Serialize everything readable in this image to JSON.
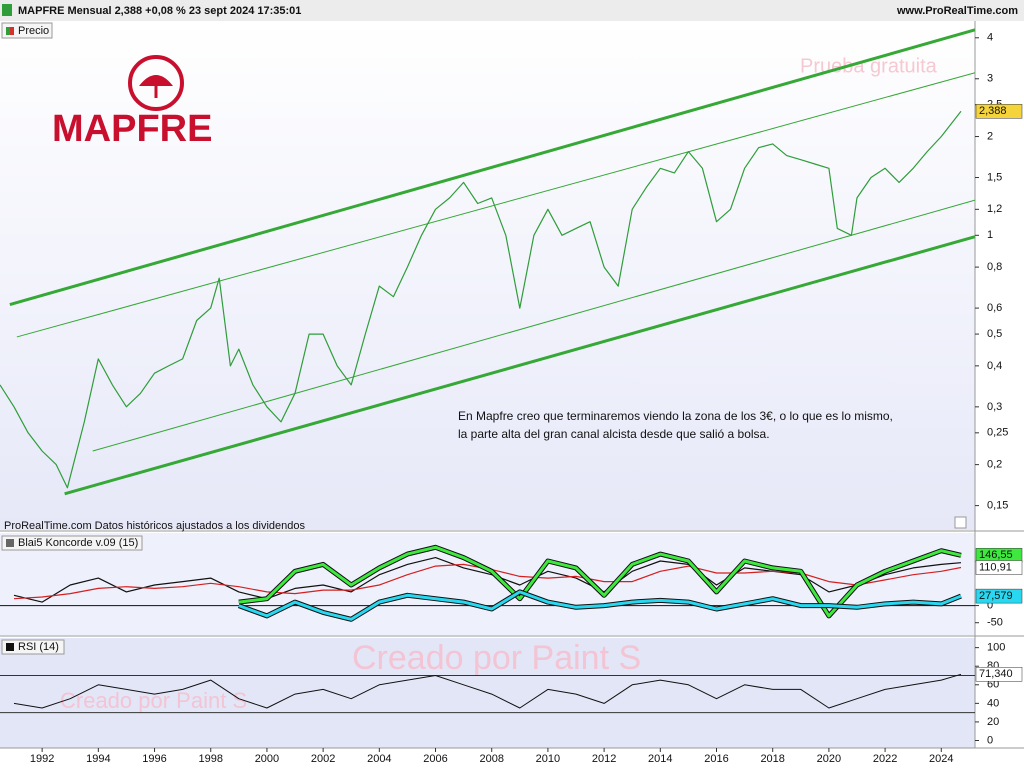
{
  "chart_data": [
    {
      "type": "line",
      "title": "MAPFRE Mensual 2,388 +0,08 % 23 sept 2024 17:35:01",
      "source": "www.ProRealTime.com",
      "logo": "MAPFRE",
      "watermark": "Prueba gratuita",
      "note": "ProRealTime.com  Datos históricos ajustados a los dividendos",
      "annotation": [
        "En Mapfre creo que terminaremos viendo la zona de los 3€, o lo que es lo mismo,",
        "la parte alta del gran canal alcista desde que salió a bolsa."
      ],
      "log_scale": true,
      "xlim": [
        1990.5,
        2025.2
      ],
      "ylim": [
        0.13,
        4.5
      ],
      "yticks": [
        4,
        3,
        {
          "value": 2.5,
          "label": "2,5"
        },
        2,
        {
          "value": 1.5,
          "label": "1,5"
        },
        {
          "value": 1.2,
          "label": "1,2"
        },
        1,
        {
          "value": 0.8,
          "label": "0,8"
        },
        {
          "value": 0.6,
          "label": "0,6"
        },
        {
          "value": 0.5,
          "label": "0,5"
        },
        {
          "value": 0.4,
          "label": "0,4"
        },
        {
          "value": 0.3,
          "label": "0,3"
        },
        {
          "value": 0.25,
          "label": "0,25"
        },
        {
          "value": 0.2,
          "label": "0,2"
        },
        {
          "value": 0.15,
          "label": "0,15"
        }
      ],
      "x": [
        1990.5,
        1991,
        1991.5,
        1992,
        1992.5,
        1992.9,
        1993.5,
        1994,
        1994.5,
        1995,
        1995.5,
        1996,
        1996.5,
        1997,
        1997.5,
        1998,
        1998.3,
        1998.7,
        1999,
        1999.5,
        2000,
        2000.5,
        2001,
        2001.5,
        2002,
        2002.5,
        2003,
        2003.5,
        2004,
        2004.5,
        2005,
        2005.5,
        2006,
        2006.5,
        2007,
        2007.5,
        2008,
        2008.5,
        2009,
        2009.5,
        2010,
        2010.5,
        2011,
        2011.5,
        2012,
        2012.5,
        2013,
        2013.5,
        2014,
        2014.5,
        2015,
        2015.5,
        2016,
        2016.5,
        2017,
        2017.5,
        2018,
        2018.5,
        2019,
        2019.5,
        2020,
        2020.3,
        2020.8,
        2021,
        2021.5,
        2022,
        2022.5,
        2023,
        2023.5,
        2024,
        2024.7
      ],
      "series": [
        {
          "name": "Precio",
          "color": "#2f9d3a",
          "values": [
            0.35,
            0.3,
            0.25,
            0.22,
            0.2,
            0.17,
            0.27,
            0.42,
            0.35,
            0.3,
            0.33,
            0.38,
            0.4,
            0.42,
            0.55,
            0.6,
            0.74,
            0.4,
            0.45,
            0.35,
            0.3,
            0.27,
            0.33,
            0.5,
            0.5,
            0.4,
            0.35,
            0.5,
            0.7,
            0.65,
            0.8,
            1.0,
            1.2,
            1.3,
            1.45,
            1.25,
            1.3,
            1.0,
            0.6,
            1.0,
            1.2,
            1.0,
            1.05,
            1.1,
            0.8,
            0.7,
            1.2,
            1.4,
            1.6,
            1.55,
            1.8,
            1.6,
            1.1,
            1.2,
            1.6,
            1.85,
            1.9,
            1.75,
            1.7,
            1.65,
            1.6,
            1.05,
            1.0,
            1.3,
            1.5,
            1.6,
            1.45,
            1.6,
            1.8,
            2.0,
            2.388
          ]
        }
      ],
      "trendlines": [
        {
          "color": "#35a835",
          "width": 3,
          "x": [
            1990.85,
            2025.2
          ],
          "values": [
            0.615,
            4.23
          ]
        },
        {
          "color": "#35a835",
          "width": 1,
          "x": [
            1991.1,
            2025.2
          ],
          "values": [
            0.49,
            3.13
          ]
        },
        {
          "color": "#35a835",
          "width": 1,
          "x": [
            1993.8,
            2025.2
          ],
          "values": [
            0.22,
            1.28
          ]
        },
        {
          "color": "#35a835",
          "width": 3,
          "x": [
            1992.8,
            2025.2
          ],
          "values": [
            0.163,
            0.99
          ]
        }
      ],
      "last_values": [
        {
          "value": 2.388,
          "label": "2,388",
          "color": "#f5d33b"
        }
      ]
    },
    {
      "type": "line",
      "title": "Blai5 Koncorde v.09 (15)",
      "xlim": [
        1990.5,
        2025.2
      ],
      "ylim": [
        -80,
        200
      ],
      "yticks": [
        0,
        -50
      ],
      "zero_line": 0,
      "x": [
        1991,
        1992,
        1993,
        1994,
        1995,
        1996,
        1997,
        1998,
        1999,
        2000,
        2001,
        2002,
        2003,
        2004,
        2005,
        2006,
        2007,
        2008,
        2009,
        2010,
        2011,
        2012,
        2013,
        2014,
        2015,
        2016,
        2017,
        2018,
        2019,
        2020,
        2021,
        2022,
        2023,
        2024,
        2024.7
      ],
      "series": [
        {
          "color": "#111111",
          "width": 1.2,
          "values": [
            30,
            10,
            60,
            80,
            40,
            60,
            70,
            80,
            40,
            20,
            50,
            60,
            40,
            90,
            120,
            140,
            110,
            90,
            60,
            100,
            80,
            40,
            100,
            130,
            120,
            60,
            110,
            100,
            90,
            40,
            60,
            90,
            110,
            120,
            125
          ]
        },
        {
          "color": "#d42020",
          "width": 1.2,
          "values": [
            20,
            25,
            35,
            50,
            55,
            50,
            55,
            65,
            55,
            40,
            35,
            45,
            45,
            60,
            90,
            115,
            120,
            105,
            85,
            80,
            85,
            70,
            70,
            100,
            115,
            95,
            95,
            100,
            95,
            70,
            60,
            75,
            90,
            100,
            110.91
          ]
        },
        {
          "color": "#3ee83e",
          "width": 3,
          "values": [
            null,
            null,
            null,
            null,
            null,
            null,
            null,
            null,
            10,
            20,
            100,
            120,
            60,
            110,
            150,
            170,
            140,
            100,
            20,
            130,
            110,
            30,
            120,
            150,
            130,
            40,
            130,
            110,
            100,
            -30,
            60,
            100,
            130,
            160,
            146.55
          ]
        },
        {
          "color": "#28d8f0",
          "width": 3,
          "values": [
            null,
            null,
            null,
            null,
            null,
            null,
            null,
            null,
            0,
            -30,
            10,
            -20,
            -40,
            10,
            30,
            20,
            10,
            -10,
            40,
            10,
            -5,
            0,
            10,
            15,
            10,
            -10,
            5,
            20,
            0,
            0,
            -5,
            5,
            10,
            5,
            27.579
          ]
        }
      ],
      "last_values": [
        {
          "value": 146.55,
          "label": "146,55",
          "color": "#3ee83e"
        },
        {
          "value": 110.91,
          "label": "110,91",
          "color": "#ffffff"
        },
        {
          "value": 27.579,
          "label": "27,579",
          "color": "#28d8f0"
        }
      ]
    },
    {
      "type": "line",
      "title": "RSI (14)",
      "xlim": [
        1990.5,
        2025.2
      ],
      "ylim": [
        -7,
        105
      ],
      "yticks": [
        0,
        20,
        40,
        60,
        80,
        100
      ],
      "levels": [
        30,
        70
      ],
      "watermark": [
        "Creado por Paint S",
        "Creado por Paint S"
      ],
      "xticks": [
        1992,
        1994,
        1996,
        1998,
        2000,
        2002,
        2004,
        2006,
        2008,
        2010,
        2012,
        2014,
        2016,
        2018,
        2020,
        2022,
        2024
      ],
      "x": [
        1991,
        1992,
        1993,
        1994,
        1995,
        1996,
        1997,
        1998,
        1999,
        2000,
        2001,
        2002,
        2003,
        2004,
        2005,
        2006,
        2007,
        2008,
        2009,
        2010,
        2011,
        2012,
        2013,
        2014,
        2015,
        2016,
        2017,
        2018,
        2019,
        2020,
        2021,
        2022,
        2023,
        2024,
        2024.7
      ],
      "series": [
        {
          "color": "#111111",
          "width": 1,
          "values": [
            40,
            35,
            45,
            60,
            55,
            50,
            55,
            65,
            45,
            35,
            50,
            55,
            45,
            60,
            65,
            70,
            60,
            50,
            35,
            55,
            50,
            40,
            60,
            65,
            60,
            45,
            60,
            55,
            55,
            35,
            45,
            55,
            60,
            65,
            71.34
          ]
        }
      ],
      "last_values": [
        {
          "value": 71.34,
          "label": "71,340",
          "color": "#ffffff"
        }
      ]
    }
  ]
}
